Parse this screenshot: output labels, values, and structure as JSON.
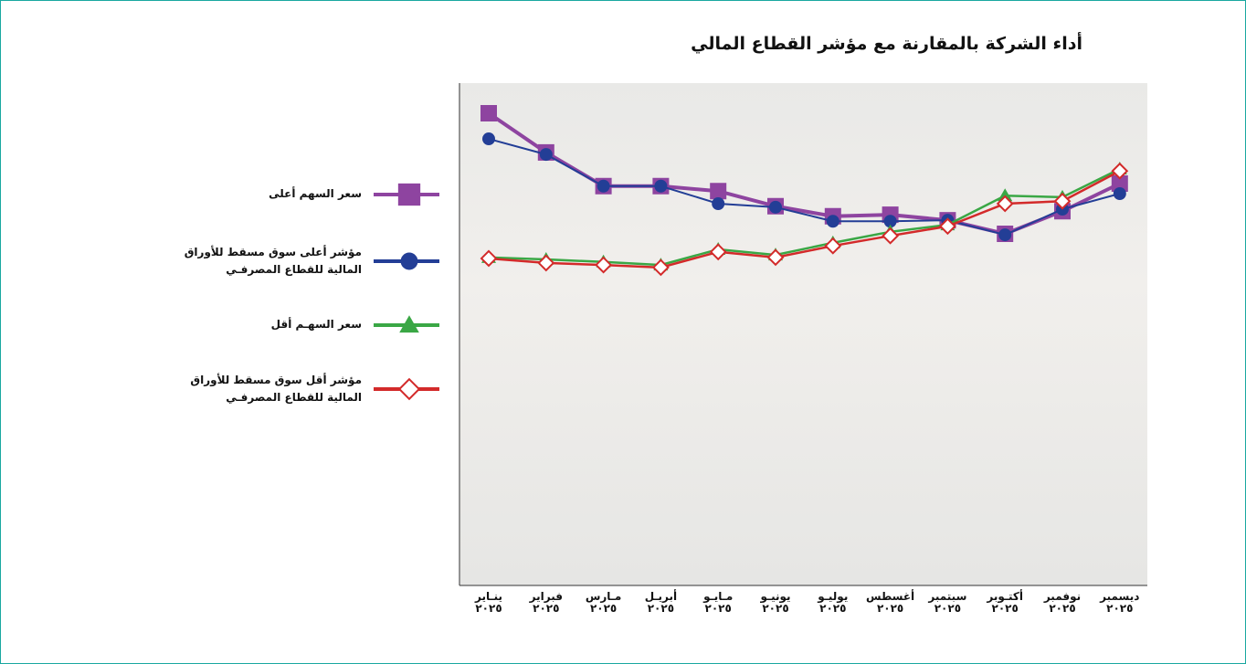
{
  "chart_data": {
    "type": "line",
    "title": "أداء الشركة بالمقارنة مع مؤشر القطاع المالي",
    "categories": [
      "ينـاير\n٢٠٢٥",
      "فبراير\n٢٠٢٥",
      "مـارس\n٢٠٢٥",
      "أبريـل\n٢٠٢٥",
      "مـايـو\n٢٠٢٥",
      "يونيـو\n٢٠٢٥",
      "يوليـو\n٢٠٢٥",
      "أغسطس\n٢٠٢٥",
      "سبتمبر\n٢٠٢٥",
      "أكتـوبر\n٢٠٢٥",
      "نوفمبر\n٢٠٢٥",
      "ديسمبر\n٢٠٢٥"
    ],
    "ylim": [
      0,
      100
    ],
    "series": [
      {
        "name": "سعر السهم أعلى",
        "color": "#8e44a0",
        "marker": "square",
        "values": [
          94.0,
          86.2,
          79.5,
          79.5,
          78.5,
          75.5,
          73.5,
          73.8,
          72.7,
          70.0,
          74.5,
          80.0
        ]
      },
      {
        "name": "مؤشر أعلى سوق مسقط للأوراق\nالمالية للقطاع المصرفـي",
        "color": "#233e96",
        "marker": "circle",
        "values": [
          88.9,
          85.8,
          79.5,
          79.5,
          76.0,
          75.3,
          72.5,
          72.5,
          72.7,
          69.8,
          74.9,
          78.0
        ]
      },
      {
        "name": "سعر السهـم أقل",
        "color": "#3aa745",
        "marker": "triangle",
        "values": [
          65.3,
          64.9,
          64.4,
          63.8,
          66.9,
          65.8,
          68.2,
          70.4,
          71.8,
          77.6,
          77.3,
          82.9
        ]
      },
      {
        "name": "مؤشر أقل سوق مسقط للأوراق\nالمالية للقطاع المصرفـي",
        "color": "#d32a2a",
        "marker": "diamond",
        "values": [
          65.1,
          64.2,
          63.8,
          63.3,
          66.4,
          65.3,
          67.6,
          69.6,
          71.5,
          76.0,
          76.5,
          82.5
        ]
      }
    ]
  }
}
